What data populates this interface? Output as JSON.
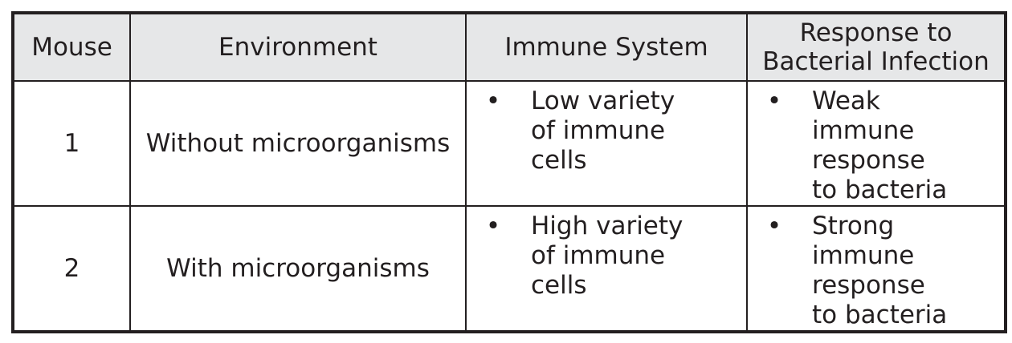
{
  "table": {
    "headers": {
      "mouse": "Mouse",
      "environment": "Environment",
      "immune_system": "Immune System",
      "response_line1": "Response to",
      "response_line2": "Bacterial Infection"
    },
    "bullet_symbol": "•",
    "rows": [
      {
        "mouse": "1",
        "environment": "Without microorganisms",
        "immune_system": [
          "Low variety",
          "of immune",
          "cells"
        ],
        "response": [
          "Weak",
          "immune",
          "response",
          "to bacteria"
        ]
      },
      {
        "mouse": "2",
        "environment": "With microorganisms",
        "immune_system": [
          "High variety",
          "of immune",
          "cells"
        ],
        "response": [
          "Strong",
          "immune",
          "response",
          "to bacteria"
        ]
      }
    ]
  }
}
